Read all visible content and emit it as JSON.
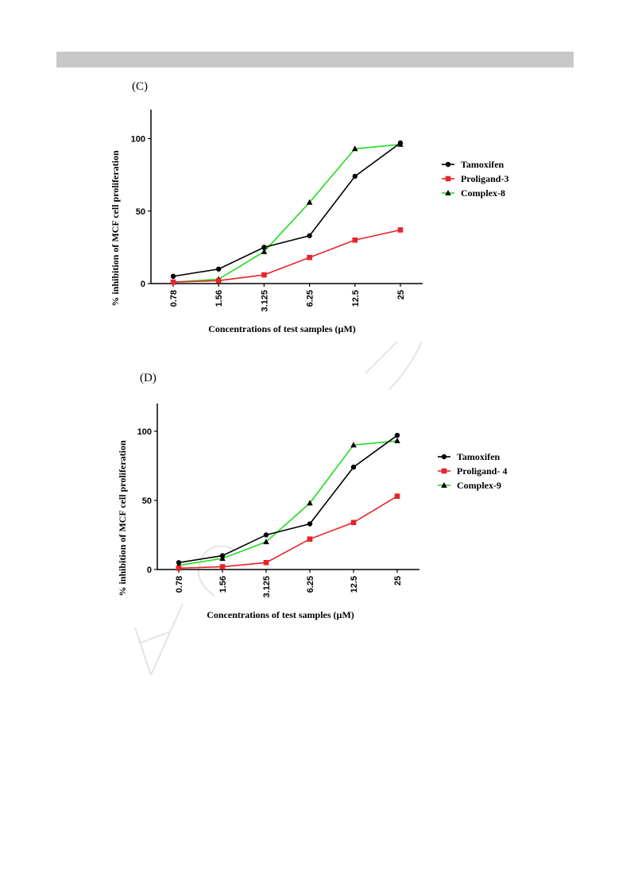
{
  "chart_data": [
    {
      "type": "line",
      "panel_label": "(C)",
      "title": "",
      "xlabel": "Concentrations of test samples (µM)",
      "ylabel": "% inhibition of MCF cell proliferation",
      "categories": [
        "0.78",
        "1.56",
        "3.125",
        "6.25",
        "12.5",
        "25"
      ],
      "ylim": [
        0,
        120
      ],
      "yticks": [
        0,
        50,
        100
      ],
      "legend_position": "right",
      "grid": false,
      "series": [
        {
          "name": "Tamoxifen",
          "color": "#000000",
          "marker": "circle",
          "values": [
            5,
            10,
            25,
            33,
            74,
            97
          ]
        },
        {
          "name": "Proligand-3",
          "color": "#e8232a",
          "marker": "square",
          "values": [
            1,
            2,
            6,
            18,
            30,
            37
          ]
        },
        {
          "name": "Complex-8",
          "color": "#22dd22",
          "marker": "triangle",
          "values": [
            1,
            3,
            22,
            56,
            93,
            96
          ]
        }
      ]
    },
    {
      "type": "line",
      "panel_label": "(D)",
      "title": "",
      "xlabel": "Concentrations of test samples (µM)",
      "ylabel": "% inhibition of MCF cell proliferation",
      "categories": [
        "0.78",
        "1.56",
        "3.125",
        "6.25",
        "12.5",
        "25"
      ],
      "ylim": [
        0,
        120
      ],
      "yticks": [
        0,
        50,
        100
      ],
      "legend_position": "right",
      "grid": false,
      "series": [
        {
          "name": "Tamoxifen",
          "color": "#000000",
          "marker": "circle",
          "values": [
            5,
            10,
            25,
            33,
            74,
            97
          ]
        },
        {
          "name": "Proligand- 4",
          "color": "#e8232a",
          "marker": "square",
          "values": [
            1,
            2,
            5,
            22,
            34,
            53
          ]
        },
        {
          "name": "Complex-9",
          "color": "#22dd22",
          "marker": "triangle",
          "values": [
            3,
            8,
            20,
            48,
            90,
            93
          ]
        }
      ]
    }
  ]
}
